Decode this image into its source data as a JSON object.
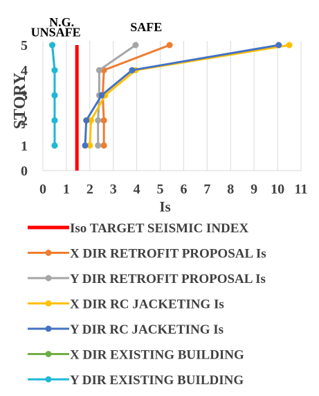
{
  "chart_data": {
    "type": "line",
    "xlabel": "Is",
    "ylabel": "STORY",
    "xlim": [
      0,
      11
    ],
    "ylim": [
      0,
      5
    ],
    "x_ticks": [
      "0",
      "1",
      "2",
      "3",
      "4",
      "5",
      "6",
      "7",
      "8",
      "9",
      "10",
      "11"
    ],
    "y_ticks": [
      "0",
      "1",
      "2",
      "3",
      "4",
      "5"
    ],
    "grid": "vertical",
    "legend_position": "bottom",
    "annotations": [
      {
        "text": "N.G.",
        "x": 0.8,
        "y": 5.75
      },
      {
        "text": "UNSAFE",
        "x": 0.55,
        "y": 5.35
      },
      {
        "text": "SAFE",
        "x": 4.4,
        "y": 5.55
      }
    ],
    "series": [
      {
        "name": "Iso TARGET SEISMIC INDEX",
        "color": "#ff0000",
        "marker": false,
        "x": [
          1.45,
          1.45
        ],
        "y": [
          0,
          5
        ]
      },
      {
        "name": "X DIR RETROFIT PROPOSAL Is",
        "color": "#ed7d31",
        "marker": true,
        "x": [
          2.6,
          2.6,
          2.55,
          2.6,
          5.4
        ],
        "y": [
          1,
          2,
          3,
          4,
          5
        ]
      },
      {
        "name": "Y DIR RETROFIT PROPOSAL Is",
        "color": "#a5a5a5",
        "marker": true,
        "x": [
          2.35,
          2.35,
          2.4,
          2.4,
          3.95
        ],
        "y": [
          1,
          2,
          3,
          4,
          5
        ]
      },
      {
        "name": "X DIR RC JACKETING Is",
        "color": "#ffc000",
        "marker": true,
        "x": [
          2.0,
          2.05,
          2.65,
          3.95,
          10.5
        ],
        "y": [
          1,
          2,
          3,
          4,
          5
        ]
      },
      {
        "name": "Y DIR RC JACKETING Is",
        "color": "#4472c4",
        "marker": true,
        "x": [
          1.8,
          1.85,
          2.5,
          3.8,
          10.05
        ],
        "y": [
          1,
          2,
          3,
          4,
          5
        ]
      },
      {
        "name": "X DIR EXISTING BUILDING",
        "color": "#70ad47",
        "marker": true,
        "x": [
          0.5,
          0.5,
          0.5,
          0.5,
          0.4
        ],
        "y": [
          1,
          2,
          3,
          4,
          5
        ]
      },
      {
        "name": "Y DIR EXISTING BUILDING",
        "color": "#1eb9d6",
        "marker": true,
        "x": [
          0.5,
          0.5,
          0.5,
          0.5,
          0.4
        ],
        "y": [
          1,
          2,
          3,
          4,
          5
        ]
      }
    ]
  }
}
